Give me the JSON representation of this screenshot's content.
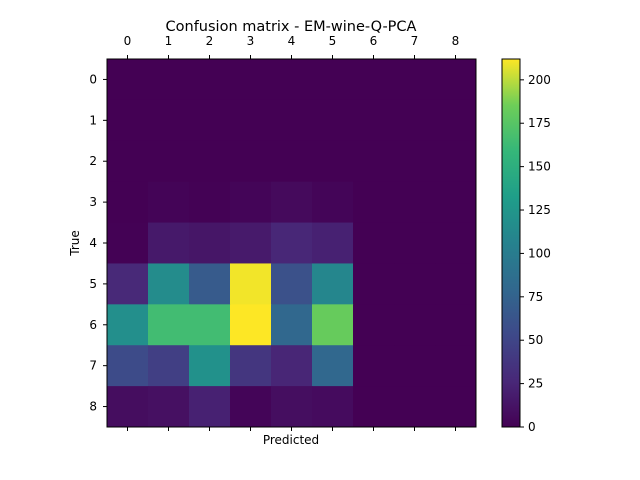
{
  "chart_data": {
    "type": "heatmap",
    "title": "Confusion matrix - EM-wine-Q-PCA",
    "xlabel": "Predicted",
    "ylabel": "True",
    "x_ticks": [
      "0",
      "1",
      "2",
      "3",
      "4",
      "5",
      "6",
      "7",
      "8"
    ],
    "y_ticks": [
      "0",
      "1",
      "2",
      "3",
      "4",
      "5",
      "6",
      "7",
      "8"
    ],
    "matrix": [
      [
        0,
        0,
        0,
        0,
        0,
        0,
        0,
        0,
        0
      ],
      [
        0,
        0,
        0,
        0,
        0,
        0,
        0,
        0,
        0
      ],
      [
        0,
        0,
        0,
        0,
        0,
        0,
        0,
        0,
        0
      ],
      [
        0,
        2,
        1,
        3,
        6,
        3,
        0,
        0,
        0
      ],
      [
        1,
        16,
        14,
        17,
        26,
        22,
        0,
        0,
        0
      ],
      [
        27,
        115,
        68,
        210,
        60,
        110,
        0,
        0,
        0
      ],
      [
        118,
        165,
        165,
        212,
        80,
        182,
        0,
        0,
        0
      ],
      [
        55,
        45,
        120,
        38,
        25,
        80,
        0,
        0,
        0
      ],
      [
        8,
        10,
        22,
        3,
        9,
        7,
        0,
        0,
        0
      ]
    ],
    "colorbar": {
      "colormap": "viridis",
      "range": [
        0,
        212
      ],
      "ticks": [
        0,
        25,
        50,
        75,
        100,
        125,
        150,
        175,
        200
      ]
    },
    "grid": false
  }
}
